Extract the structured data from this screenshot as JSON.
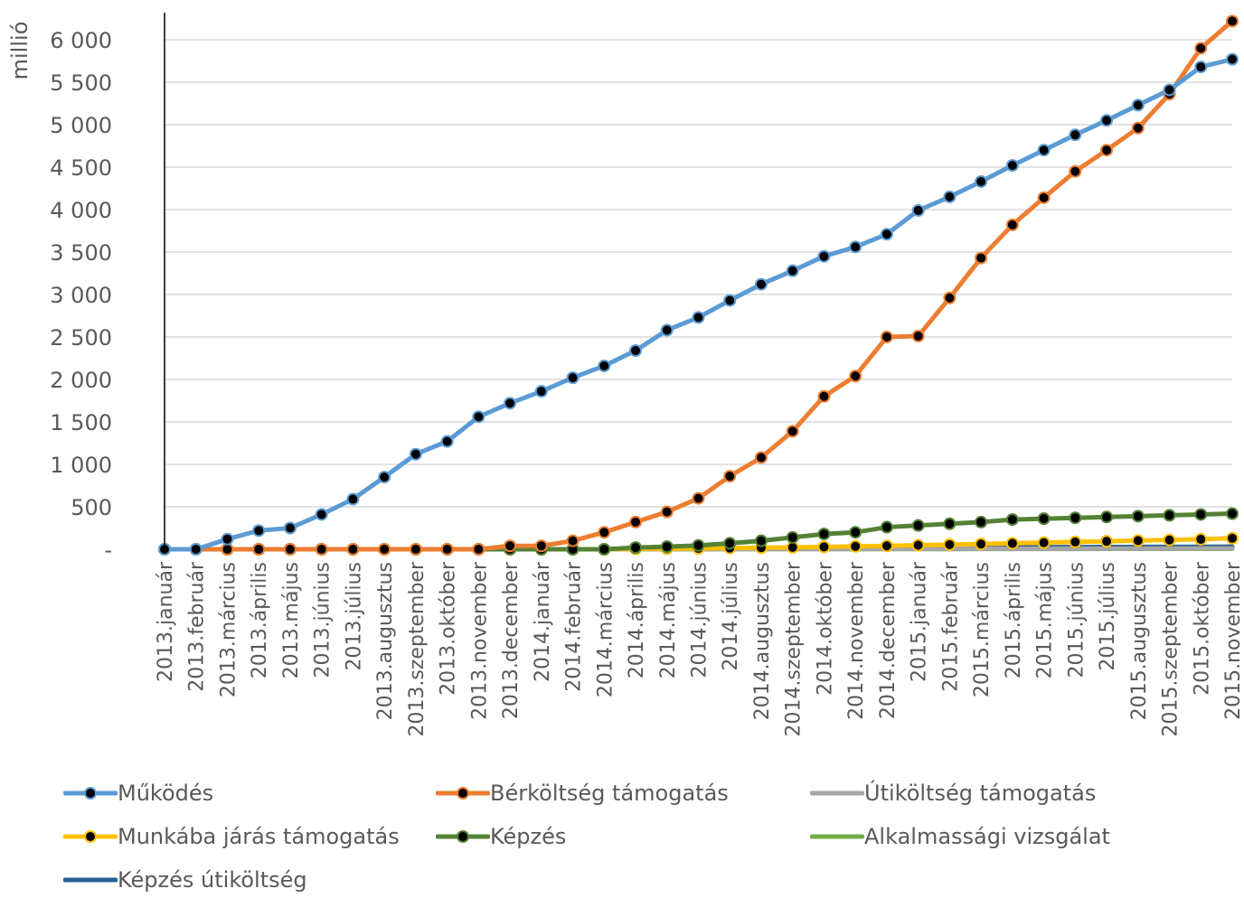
{
  "chart_data": {
    "type": "line",
    "ylabel": "millió",
    "xlabel": "",
    "ylim": [
      0,
      6000
    ],
    "yticks": [
      {
        "value": 0,
        "label": "-"
      },
      {
        "value": 500,
        "label": "500"
      },
      {
        "value": 1000,
        "label": "1 000"
      },
      {
        "value": 1500,
        "label": "1 500"
      },
      {
        "value": 2000,
        "label": "2 000"
      },
      {
        "value": 2500,
        "label": "2 500"
      },
      {
        "value": 3000,
        "label": "3 000"
      },
      {
        "value": 3500,
        "label": "3 500"
      },
      {
        "value": 4000,
        "label": "4 000"
      },
      {
        "value": 4500,
        "label": "4 500"
      },
      {
        "value": 5000,
        "label": "5 000"
      },
      {
        "value": 5500,
        "label": "5 500"
      },
      {
        "value": 6000,
        "label": "6 000"
      }
    ],
    "grid": true,
    "legend_position": "bottom",
    "categories": [
      "2013.január",
      "2013.február",
      "2013.március",
      "2013.április",
      "2013.május",
      "2013.június",
      "2013.július",
      "2013.augusztus",
      "2013.szeptember",
      "2013.október",
      "2013.november",
      "2013.december",
      "2014.január",
      "2014.február",
      "2014.március",
      "2014.április",
      "2014.május",
      "2014.június",
      "2014.július",
      "2014.augusztus",
      "2014.szeptember",
      "2014.október",
      "2014.november",
      "2014.december",
      "2015.január",
      "2015.február",
      "2015.március",
      "2015.április",
      "2015.május",
      "2015.június",
      "2015.július",
      "2015.augusztus",
      "2015.szeptember",
      "2015.október",
      "2015.november"
    ],
    "series": [
      {
        "name": "Működés",
        "color": "#5B9BD5",
        "markers": true,
        "values": [
          0,
          0,
          120,
          220,
          250,
          410,
          590,
          850,
          1120,
          1270,
          1560,
          1720,
          1860,
          2020,
          2160,
          2340,
          2580,
          2730,
          2930,
          3120,
          3280,
          3450,
          3560,
          3710,
          3990,
          4150,
          4330,
          4520,
          4700,
          4880,
          5050,
          5230,
          5410,
          5680,
          5770
        ]
      },
      {
        "name": "Bérköltség támogatás",
        "color": "#ED7D31",
        "markers": true,
        "values": [
          0,
          0,
          0,
          0,
          0,
          0,
          0,
          0,
          0,
          0,
          0,
          40,
          40,
          100,
          200,
          320,
          440,
          600,
          860,
          1080,
          1390,
          1800,
          2040,
          2500,
          2510,
          2960,
          3430,
          3820,
          4140,
          4450,
          4700,
          4960,
          5360,
          5900,
          6220
        ]
      },
      {
        "name": "Útiköltség támogatás",
        "color": "#A5A5A5",
        "markers": false,
        "values": [
          0,
          0,
          0,
          0,
          0,
          0,
          0,
          0,
          0,
          0,
          0,
          0,
          0,
          0,
          0,
          1,
          1,
          2,
          2,
          3,
          3,
          4,
          4,
          5,
          5,
          6,
          6,
          7,
          7,
          8,
          8,
          9,
          9,
          10,
          10
        ]
      },
      {
        "name": "Munkába járás támogatás",
        "color": "#FFC000",
        "markers": true,
        "values": [
          0,
          0,
          0,
          0,
          0,
          0,
          0,
          0,
          0,
          0,
          0,
          0,
          0,
          0,
          0,
          5,
          8,
          10,
          14,
          18,
          22,
          28,
          34,
          40,
          48,
          55,
          62,
          70,
          78,
          86,
          94,
          102,
          110,
          118,
          130
        ]
      },
      {
        "name": "Képzés",
        "color": "#548235",
        "markers": true,
        "values": [
          0,
          0,
          0,
          0,
          0,
          0,
          0,
          0,
          0,
          0,
          0,
          0,
          0,
          0,
          0,
          20,
          30,
          45,
          70,
          100,
          140,
          180,
          200,
          260,
          280,
          300,
          320,
          350,
          360,
          370,
          380,
          390,
          400,
          410,
          420
        ]
      },
      {
        "name": "Alkalmassági vizsgálat",
        "color": "#70AD47",
        "markers": false,
        "values": [
          0,
          0,
          0,
          0,
          0,
          0,
          0,
          0,
          0,
          0,
          0,
          0,
          0,
          0,
          0,
          0,
          1,
          1,
          1,
          2,
          2,
          2,
          3,
          3,
          3,
          3,
          4,
          4,
          4,
          4,
          5,
          5,
          5,
          5,
          5
        ]
      },
      {
        "name": "Képzés útiköltség",
        "color": "#255E91",
        "markers": false,
        "values": [
          0,
          0,
          0,
          0,
          0,
          0,
          0,
          0,
          0,
          0,
          0,
          0,
          0,
          0,
          0,
          2,
          4,
          6,
          8,
          10,
          12,
          14,
          16,
          18,
          20,
          21,
          22,
          23,
          24,
          25,
          26,
          27,
          28,
          29,
          30
        ]
      }
    ]
  }
}
